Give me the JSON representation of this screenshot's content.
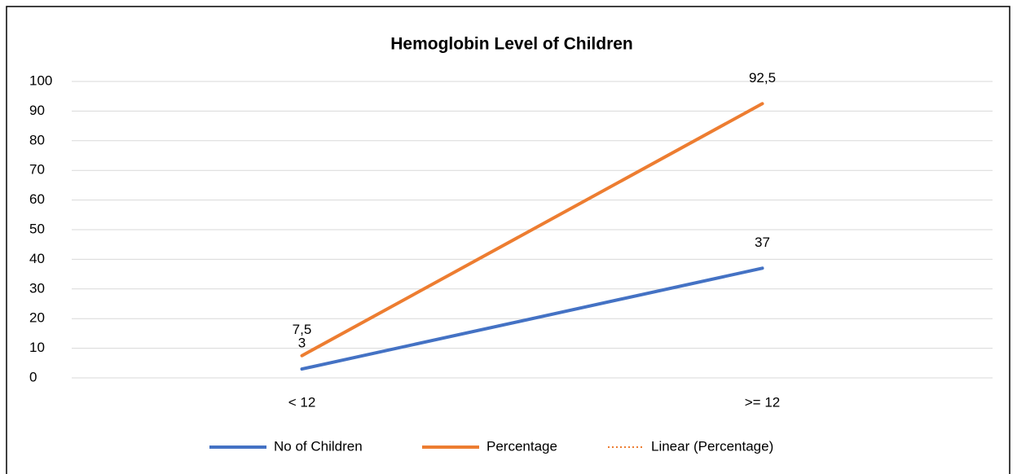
{
  "chart_data": {
    "type": "line",
    "title": "Hemoglobin Level of Children",
    "categories": [
      "< 12",
      ">= 12"
    ],
    "series": [
      {
        "name": "No of Children",
        "color": "#4472c4",
        "values": [
          3,
          37
        ]
      },
      {
        "name": "Percentage",
        "color": "#ed7d31",
        "values": [
          7.5,
          92.5
        ],
        "value_labels": [
          "7,5",
          "92,5"
        ]
      }
    ],
    "trendline": {
      "name": "Linear (Percentage)",
      "series": 1,
      "color": "#ed7d31"
    },
    "ylim": [
      0,
      100
    ],
    "yticks": [
      0,
      10,
      20,
      30,
      40,
      50,
      60,
      70,
      80,
      90,
      100
    ],
    "grid": true,
    "legend": "bottom"
  }
}
